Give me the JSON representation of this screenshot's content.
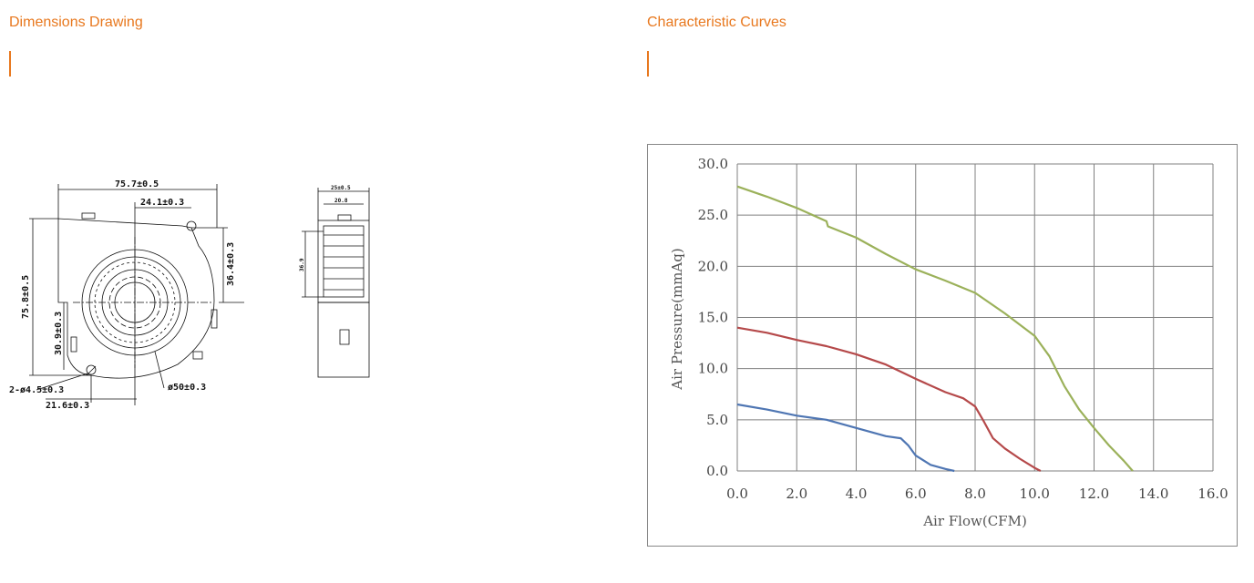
{
  "left_section": {
    "title": "Dimensions Drawing"
  },
  "right_section": {
    "title": "Characteristic Curves"
  },
  "drawing": {
    "front": {
      "width_dim": "75.7±0.5",
      "outlet_offset": "24.1±0.3",
      "height_dim": "75.8±0.5",
      "right_dim": "36.4±0.3",
      "left_lower_dim": "30.9±0.3",
      "hole_dim": "2-ø4.5±0.3",
      "bottom_dim": "21.6±0.3",
      "inlet_dim": "ø50±0.3"
    },
    "side": {
      "depth_dim": "25±0.5",
      "inner_dim": "20.8",
      "inlet_height": "36.9"
    }
  },
  "chart_data": {
    "type": "line",
    "title": "",
    "xlabel": "Air Flow(CFM)",
    "ylabel": "Air Pressure(mmAq)",
    "xlim": [
      0,
      16
    ],
    "ylim": [
      0,
      30
    ],
    "x_ticks": [
      "0.0",
      "2.0",
      "4.0",
      "6.0",
      "8.0",
      "10.0",
      "12.0",
      "14.0",
      "16.0"
    ],
    "y_ticks": [
      "0.0",
      "5.0",
      "10.0",
      "15.0",
      "20.0",
      "25.0",
      "30.0"
    ],
    "grid": true,
    "series": [
      {
        "color": "#9bb15a",
        "x": [
          0.0,
          1.0,
          2.0,
          3.0,
          3.05,
          4.0,
          5.0,
          6.0,
          7.0,
          8.0,
          9.0,
          10.0,
          10.5,
          11.0,
          11.5,
          12.0,
          12.5,
          13.0,
          13.3
        ],
        "y": [
          27.8,
          26.8,
          25.7,
          24.4,
          23.9,
          22.8,
          21.2,
          19.7,
          18.6,
          17.4,
          15.4,
          13.2,
          11.2,
          8.3,
          6.0,
          4.2,
          2.5,
          1.0,
          0.0
        ]
      },
      {
        "color": "#b5494a",
        "x": [
          0.0,
          1.0,
          2.0,
          3.0,
          4.0,
          5.0,
          6.0,
          7.0,
          7.6,
          8.0,
          8.3,
          8.6,
          9.0,
          9.5,
          10.0,
          10.2
        ],
        "y": [
          14.0,
          13.5,
          12.8,
          12.2,
          11.4,
          10.4,
          9.0,
          7.7,
          7.1,
          6.3,
          4.8,
          3.2,
          2.2,
          1.2,
          0.3,
          0.0
        ]
      },
      {
        "color": "#4f76b3",
        "x": [
          0.0,
          1.0,
          2.0,
          3.0,
          4.0,
          5.0,
          5.5,
          5.75,
          6.0,
          6.5,
          7.0,
          7.3
        ],
        "y": [
          6.5,
          6.0,
          5.4,
          5.0,
          4.2,
          3.4,
          3.2,
          2.5,
          1.5,
          0.6,
          0.2,
          0.0
        ]
      }
    ]
  }
}
